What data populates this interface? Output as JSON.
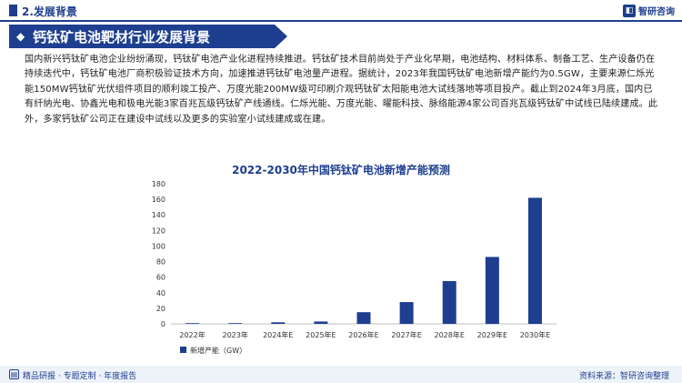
{
  "header": {
    "section_title": "2.发展背景",
    "brand_name": "智研咨询"
  },
  "banner": {
    "title": "钙钛矿电池靶材行业发展背景"
  },
  "body": {
    "paragraph": "国内新兴钙钛矿电池企业纷纷涌现，钙钛矿电池产业化进程持续推进。钙钛矿技术目前尚处于产业化早期，电池结构、材料体系、制备工艺、生产设备仍在持续迭代中，钙钛矿电池厂商积极验证技术方向，加速推进钙钛矿电池量产进程。据统计，2023年我国钙钛矿电池新增产能约为0.5GW，主要来源仁烁光能150MW钙钛矿光伏组件项目的顺利竣工投产、万度光能200MW级可印刷介观钙钛矿太阳能电池大试线落地等项目投产。截止到2024年3月底，国内已有纤纳光电、协鑫光电和极电光能3家百兆瓦级钙钛矿产线通线。仁烁光能、万度光能、曜能科技、脉络能源4家公司百兆瓦级钙钛矿中试线已陆续建成。此外，多家钙钛矿公司正在建设中试线以及更多的实验室小试线建成或在建。"
  },
  "chart_data": {
    "type": "bar",
    "title": "2022-2030年中国钙钛矿电池新增产能预测",
    "categories": [
      "2022年",
      "2023年",
      "2024年E",
      "2025年E",
      "2026年E",
      "2027年E",
      "2028年E",
      "2029年E",
      "2030年E"
    ],
    "series": [
      {
        "name": "新增产能（GW）",
        "values": [
          0.3,
          0.5,
          2,
          3,
          15,
          28,
          55,
          86,
          162
        ]
      }
    ],
    "ylim": [
      0,
      180
    ],
    "yticks": [
      0,
      20,
      40,
      60,
      80,
      100,
      120,
      140,
      160,
      180
    ],
    "grid": false,
    "legend": "bottom-left",
    "bar_color": "#1e3f8f"
  },
  "footer": {
    "left_text": "精品研报 · 专题定制 · 年度报告",
    "source": "资料来源：智研咨询整理"
  },
  "colors": {
    "primary": "#1e3f8f",
    "footer_bg": "#eef2f9"
  },
  "icons": {
    "brand": "brand-logo-icon",
    "banner": "banner-arrow-icon",
    "footer": "document-icon"
  }
}
